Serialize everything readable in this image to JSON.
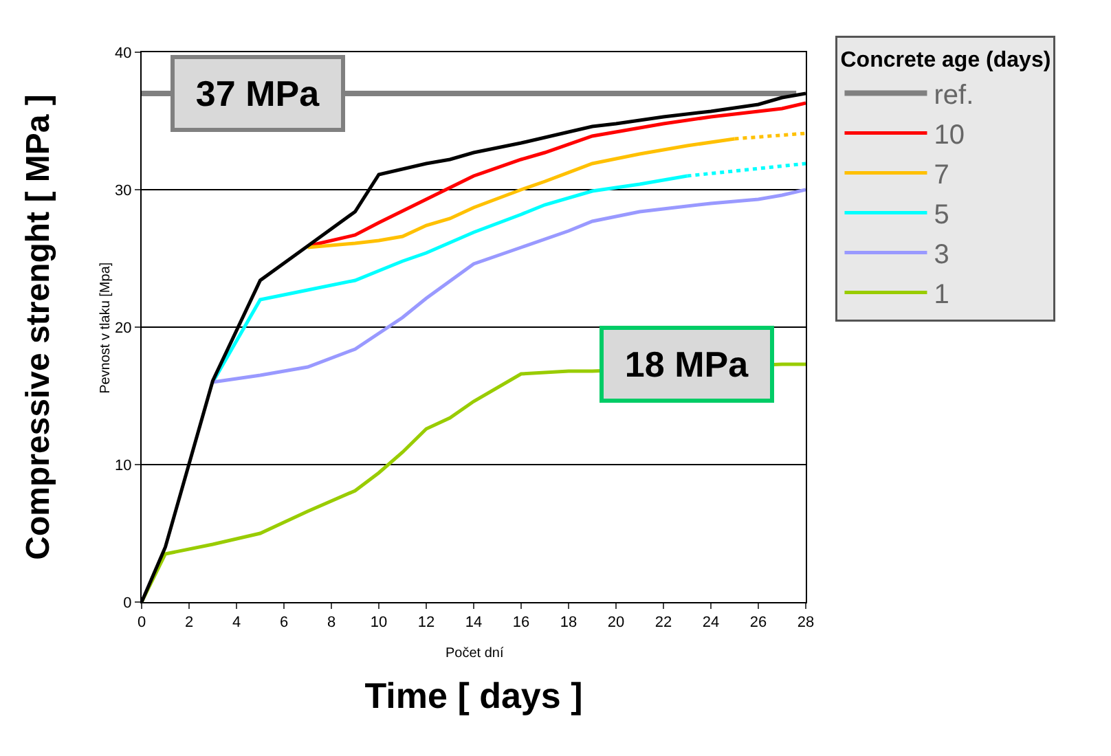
{
  "chart_data": {
    "type": "line",
    "xlabel": "Time [ days ]",
    "ylabel": "Compressive strenght [ MPa ]",
    "legend_title": "Concrete age (days)",
    "annotations": [
      "Počet dní",
      "Pevnost v tlaku [Mpa]",
      {
        "text": "37 MPa",
        "x": 4.9,
        "y": 37
      },
      {
        "text": "18 MPa",
        "x": 23,
        "y": 17.3
      }
    ],
    "xlim": [
      0,
      28
    ],
    "xticks": [
      0,
      2,
      4,
      6,
      8,
      10,
      12,
      14,
      16,
      18,
      20,
      22,
      24,
      26,
      28
    ],
    "ylim": [
      0,
      40
    ],
    "yticks": [
      0,
      10,
      20,
      30,
      40
    ],
    "grid": "y",
    "legend": "right",
    "marker": "none",
    "line_style": "solid",
    "series": [
      {
        "name": "ref.",
        "color": "#808080",
        "x": [
          0,
          27.6
        ],
        "values": [
          37,
          37
        ]
      },
      {
        "name": "10",
        "color": "#ff0000",
        "x": [
          7,
          9,
          10,
          12,
          14,
          16,
          17,
          19,
          20,
          22,
          24,
          26,
          27,
          28
        ],
        "values": [
          25.9,
          26.7,
          27.6,
          29.3,
          31.0,
          32.2,
          32.7,
          33.9,
          34.2,
          34.8,
          35.3,
          35.7,
          35.9,
          36.3
        ]
      },
      {
        "name": "7",
        "color": "#ffc000",
        "x": [
          7,
          9,
          10,
          11,
          12,
          13,
          14,
          16,
          17,
          19,
          21,
          23,
          25
        ],
        "values": [
          25.8,
          26.1,
          26.3,
          26.6,
          27.4,
          27.9,
          28.7,
          30.0,
          30.6,
          31.9,
          32.6,
          33.2,
          33.7
        ]
      },
      {
        "color": "#ffc000",
        "line_style": "dotted",
        "x": [
          25,
          28
        ],
        "values": [
          33.7,
          34.1
        ]
      },
      {
        "name": "5",
        "color": "#00ffff",
        "x": [
          3,
          5,
          7,
          9,
          10,
          11,
          12,
          14,
          16,
          17,
          19,
          21,
          23
        ],
        "values": [
          16.0,
          22.0,
          22.7,
          23.4,
          24.1,
          24.8,
          25.4,
          26.9,
          28.2,
          28.9,
          29.9,
          30.4,
          31.0
        ]
      },
      {
        "color": "#00ffff",
        "line_style": "dotted",
        "x": [
          23,
          28
        ],
        "values": [
          31.0,
          31.9
        ]
      },
      {
        "name": "3",
        "color": "#9999ff",
        "x": [
          3,
          5,
          7,
          9,
          11,
          12,
          14,
          16,
          18,
          19,
          21,
          24,
          26,
          27,
          28
        ],
        "values": [
          16.0,
          16.5,
          17.1,
          18.4,
          20.7,
          22.1,
          24.6,
          25.8,
          27.0,
          27.7,
          28.4,
          29.0,
          29.3,
          29.6,
          30.0
        ]
      },
      {
        "name": "1",
        "color": "#99cc00",
        "x": [
          0,
          1,
          3,
          5,
          7,
          9,
          10,
          11,
          12,
          13,
          14,
          16,
          18,
          19,
          27,
          28
        ],
        "values": [
          0,
          3.5,
          4.2,
          5.0,
          6.6,
          8.1,
          9.4,
          10.9,
          12.6,
          13.4,
          14.6,
          16.6,
          16.8,
          16.8,
          17.3,
          17.3
        ]
      },
      {
        "color": "#000000",
        "x": [
          0,
          1,
          3,
          5,
          7,
          9,
          10,
          12,
          13,
          14,
          16,
          18,
          19,
          20,
          22,
          24,
          26,
          27,
          28
        ],
        "values": [
          0,
          4.0,
          16.1,
          23.4,
          25.9,
          28.4,
          31.1,
          31.9,
          32.2,
          32.7,
          33.4,
          34.2,
          34.6,
          34.8,
          35.3,
          35.7,
          36.2,
          36.7,
          37.0
        ]
      }
    ]
  }
}
